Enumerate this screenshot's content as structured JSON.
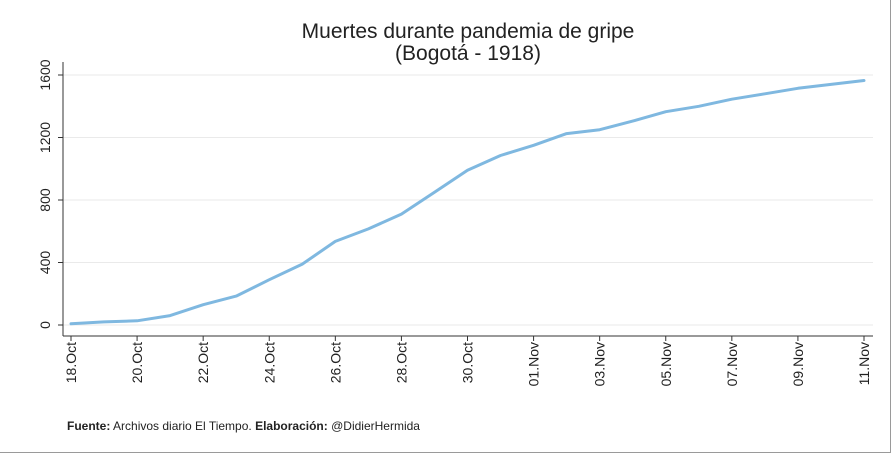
{
  "chart_data": {
    "type": "line",
    "title": "Muertes durante pandemia de gripe",
    "subtitle": "(Bogotá - 1918)",
    "xlabel": "",
    "ylabel": "",
    "ylim": [
      0,
      1650
    ],
    "yticks": [
      "0",
      "400",
      "800",
      "1200",
      "1600"
    ],
    "yticks_values": [
      0,
      400,
      800,
      1200,
      1600
    ],
    "xtick_labels": [
      "18.Oct",
      "20.Oct",
      "22.Oct",
      "24.Oct",
      "26.Oct",
      "28.Oct",
      "30.Oct",
      "01.Nov",
      "03.Nov",
      "05.Nov",
      "07.Nov",
      "09.Nov",
      "11.Nov"
    ],
    "x": [
      "18.Oct",
      "19.Oct",
      "20.Oct",
      "21.Oct",
      "22.Oct",
      "23.Oct",
      "24.Oct",
      "25.Oct",
      "26.Oct",
      "27.Oct",
      "28.Oct",
      "29.Oct",
      "30.Oct",
      "31.Oct",
      "01.Nov",
      "02.Nov",
      "03.Nov",
      "04.Nov",
      "05.Nov",
      "06.Nov",
      "07.Nov",
      "08.Nov",
      "09.Nov",
      "10.Nov",
      "11.Nov"
    ],
    "series": [
      {
        "values": [
          8,
          20,
          27,
          60,
          130,
          185,
          290,
          390,
          535,
          615,
          710,
          850,
          990,
          1085,
          1150,
          1225,
          1250,
          1305,
          1365,
          1400,
          1445,
          1480,
          1515,
          1540,
          1565
        ]
      }
    ],
    "grid": true,
    "line_color": "#7fb8e0"
  },
  "footnote": {
    "source_label": "Fuente:",
    "source_text": " Archivos diario El Tiempo. ",
    "credit_label": "Elaboración:",
    "credit_text": " @DidierHermida"
  }
}
